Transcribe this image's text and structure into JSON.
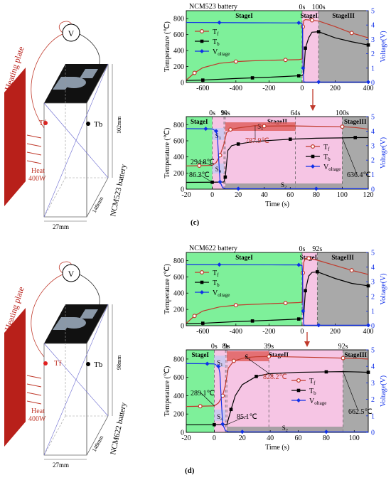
{
  "colors": {
    "green": "#7ef09a",
    "pink": "#f6c5e4",
    "gray": "#a9a9a9",
    "red": "#c0392b",
    "black": "#000000",
    "blue": "#1030e8",
    "plate": "#b8201a"
  },
  "labels": {
    "panel_c": "(c)",
    "panel_d": "(d)",
    "volt_symbol": "V"
  },
  "diagrams": [
    {
      "plate_label": "Heating plate",
      "tf_label": "Tf",
      "tb_label": "Tb",
      "heat_label": "Heat",
      "power_label": "400W",
      "height_label": "102mm",
      "depth_label": "148mm",
      "width_label": "27mm",
      "battery_label": "NCM523 battery"
    },
    {
      "plate_label": "Heating plate",
      "tf_label": "Tf",
      "tb_label": "Tb",
      "heat_label": "Heat",
      "power_label": "400W",
      "height_label": "98mm",
      "depth_label": "148mm",
      "width_label": "27mm",
      "battery_label": "NCM622 battery"
    }
  ],
  "chart_data": [
    {
      "id": "c-top",
      "type": "line",
      "title": "NCM523 battery",
      "xlabel": "",
      "ylabel": "Temperature (℃)",
      "y2label": "Voltage(V)",
      "xlim": [
        -700,
        400
      ],
      "ylim": [
        0,
        900
      ],
      "y2lim": [
        0,
        5
      ],
      "xticks": [
        -600,
        -400,
        -200,
        0,
        200,
        400
      ],
      "xticklabels": [
        "-600",
        "-400",
        "-200",
        "0",
        "200",
        "400"
      ],
      "yticks": [
        0,
        200,
        400,
        600,
        800
      ],
      "y2ticks": [
        0,
        1,
        2,
        3,
        4,
        5
      ],
      "regions": [
        {
          "label": "StageI",
          "x0": -700,
          "x1": 0,
          "color": "green"
        },
        {
          "label": "StageII",
          "x0": 0,
          "x1": 100,
          "color": "pink"
        },
        {
          "label": "StageIII",
          "x0": 100,
          "x1": 400,
          "color": "gray"
        }
      ],
      "marks": [
        {
          "label": "0s",
          "x": 0
        },
        {
          "label": "100s",
          "x": 100
        }
      ],
      "legend": "top-left",
      "series": [
        {
          "name": "Tf",
          "color": "red",
          "marker": "circle",
          "axis": "left",
          "x": [
            -700,
            -650,
            -600,
            -500,
            -400,
            -300,
            -200,
            -100,
            -20,
            0,
            5,
            10,
            20,
            60,
            100,
            200,
            300,
            400
          ],
          "y": [
            30,
            120,
            185,
            240,
            262,
            272,
            278,
            283,
            286,
            294,
            700,
            775,
            788,
            780,
            770,
            700,
            620,
            560
          ]
        },
        {
          "name": "Tb",
          "color": "black",
          "marker": "square",
          "axis": "left",
          "x": [
            -700,
            -600,
            -500,
            -400,
            -300,
            -200,
            -100,
            -20,
            0,
            10,
            20,
            40,
            60,
            100,
            200,
            300,
            400
          ],
          "y": [
            25,
            30,
            40,
            50,
            58,
            66,
            76,
            84,
            86,
            110,
            430,
            560,
            630,
            636,
            560,
            510,
            470
          ]
        },
        {
          "name": "Voltage",
          "color": "blue",
          "marker": "diamond",
          "axis": "right",
          "x": [
            -700,
            -500,
            -300,
            -100,
            -20,
            0,
            3,
            6,
            10,
            20,
            100,
            200,
            300,
            400
          ],
          "y": [
            4.18,
            4.17,
            4.16,
            4.15,
            4.15,
            4.1,
            3.5,
            1.0,
            0.05,
            0.03,
            0.03,
            0.03,
            0.03,
            0.03
          ]
        }
      ]
    },
    {
      "id": "c-bottom",
      "type": "line",
      "title": "",
      "xlabel": "Time (s)",
      "ylabel": "Temperature (℃)",
      "y2label": "Voltage(V)",
      "xlim": [
        -20,
        120
      ],
      "ylim": [
        0,
        900
      ],
      "y2lim": [
        0,
        5
      ],
      "xticks": [
        -20,
        0,
        20,
        40,
        60,
        80,
        100,
        120
      ],
      "xticklabels": [
        "-20",
        "0",
        "20",
        "40",
        "60",
        "80",
        "100",
        "120"
      ],
      "yticks": [
        0,
        200,
        400,
        600,
        800
      ],
      "y2ticks": [
        0,
        1,
        2,
        3,
        4,
        5
      ],
      "regions": [
        {
          "label": "StageI",
          "x0": -20,
          "x1": 0,
          "color": "green"
        },
        {
          "label": "StageII",
          "x0": 0,
          "x1": 100,
          "color": "pink"
        },
        {
          "label": "StageIII",
          "x0": 100,
          "x1": 120,
          "color": "gray"
        }
      ],
      "marks": [
        {
          "label": "0s",
          "x": 0
        },
        {
          "label": "9s",
          "x": 9
        },
        {
          "label": "10s",
          "x": 10
        },
        {
          "label": "64s",
          "x": 64
        },
        {
          "label": "100s",
          "x": 100
        }
      ],
      "subranges": [
        {
          "label": "S1",
          "x0": 0,
          "x1": 9,
          "row": "top-narrow"
        },
        {
          "label": "S1",
          "x0": 10,
          "x1": 64,
          "row": "top"
        },
        {
          "label": "S4",
          "x0": 0,
          "x1": 9,
          "row": "mid"
        },
        {
          "label": "S2",
          "x0": 10,
          "x1": 100,
          "row": "bottom"
        }
      ],
      "annotations": [
        {
          "text": "294.8℃",
          "x": 0,
          "y": 294.8
        },
        {
          "text": "86.2℃",
          "x": 0,
          "y": 86.2
        },
        {
          "text": "787.9℃",
          "x": 33,
          "y": 787.9
        },
        {
          "text": "636.4℃",
          "x": 100,
          "y": 636.4
        }
      ],
      "legend": "center-right",
      "series": [
        {
          "name": "Tf",
          "color": "red",
          "marker": "circle",
          "axis": "left",
          "x": [
            -20,
            -10,
            0,
            3,
            6,
            9,
            11,
            14,
            20,
            33,
            40,
            60,
            80,
            100,
            110,
            120
          ],
          "y": [
            288,
            291,
            294.8,
            330,
            420,
            560,
            700,
            740,
            760,
            787.9,
            782,
            785,
            780,
            775,
            765,
            745
          ]
        },
        {
          "name": "Tb",
          "color": "black",
          "marker": "square",
          "axis": "left",
          "x": [
            -20,
            0,
            8,
            9,
            10,
            12,
            15,
            20,
            30,
            40,
            60,
            80,
            100,
            110,
            120
          ],
          "y": [
            84,
            86.2,
            88,
            90,
            150,
            480,
            540,
            560,
            585,
            600,
            620,
            632,
            636.4,
            640,
            640
          ]
        },
        {
          "name": "Voltage",
          "color": "blue",
          "marker": "diamond",
          "axis": "right",
          "x": [
            -20,
            -5,
            0,
            1,
            3,
            4,
            5,
            6,
            8,
            10,
            20,
            40,
            60,
            80,
            100,
            120
          ],
          "y": [
            4.17,
            4.16,
            4.15,
            4.1,
            4.0,
            3.6,
            2.0,
            0.5,
            0.1,
            0.04,
            0.03,
            0.03,
            0.03,
            0.03,
            0.03,
            0.03
          ]
        }
      ]
    },
    {
      "id": "d-top",
      "type": "line",
      "title": "NCM622 battery",
      "xlabel": "",
      "ylabel": "Temperature (℃)",
      "y2label": "Voltage(V)",
      "xlim": [
        -700,
        400
      ],
      "ylim": [
        0,
        900
      ],
      "y2lim": [
        0,
        5
      ],
      "xticks": [
        -600,
        -400,
        -200,
        0,
        200,
        400
      ],
      "xticklabels": [
        "-600",
        "-400",
        "-200",
        "0",
        "200",
        "400"
      ],
      "yticks": [
        0,
        200,
        400,
        600,
        800
      ],
      "y2ticks": [
        0,
        1,
        2,
        3,
        4,
        5
      ],
      "regions": [
        {
          "label": "StageI",
          "x0": -700,
          "x1": 0,
          "color": "green"
        },
        {
          "label": "StageII",
          "x0": 0,
          "x1": 92,
          "color": "pink"
        },
        {
          "label": "StageIII",
          "x0": 92,
          "x1": 400,
          "color": "gray"
        }
      ],
      "marks": [
        {
          "label": "0s",
          "x": 0
        },
        {
          "label": "92s",
          "x": 92
        }
      ],
      "legend": "top-left",
      "series": [
        {
          "name": "Tf",
          "color": "red",
          "marker": "circle",
          "axis": "left",
          "x": [
            -700,
            -650,
            -600,
            -500,
            -400,
            -300,
            -200,
            -100,
            -20,
            0,
            5,
            10,
            20,
            40,
            92,
            200,
            300,
            400
          ],
          "y": [
            30,
            120,
            180,
            230,
            252,
            262,
            270,
            278,
            284,
            289,
            650,
            780,
            825,
            828,
            805,
            740,
            680,
            630
          ]
        },
        {
          "name": "Tb",
          "color": "black",
          "marker": "square",
          "axis": "left",
          "x": [
            -700,
            -600,
            -500,
            -400,
            -300,
            -200,
            -100,
            -20,
            0,
            9,
            20,
            40,
            60,
            92,
            200,
            300,
            400
          ],
          "y": [
            25,
            30,
            40,
            50,
            58,
            66,
            74,
            82,
            85,
            90,
            430,
            610,
            655,
            662,
            580,
            520,
            490
          ]
        },
        {
          "name": "Voltage",
          "color": "blue",
          "marker": "diamond",
          "axis": "right",
          "x": [
            -700,
            -500,
            -300,
            -100,
            -20,
            0,
            3,
            6,
            10,
            20,
            100,
            200,
            300,
            400
          ],
          "y": [
            4.18,
            4.17,
            4.16,
            4.15,
            4.15,
            4.1,
            3.5,
            1.0,
            0.05,
            0.03,
            0.03,
            0.03,
            0.03,
            0.03
          ]
        }
      ]
    },
    {
      "id": "d-bottom",
      "type": "line",
      "title": "",
      "xlabel": "Time (s)",
      "ylabel": "Temperature (℃)",
      "y2label": "Voltage(V)",
      "xlim": [
        -20,
        110
      ],
      "ylim": [
        0,
        900
      ],
      "y2lim": [
        0,
        5
      ],
      "xticks": [
        -20,
        0,
        20,
        40,
        60,
        80,
        100
      ],
      "xticklabels": [
        "-20",
        "0",
        "20",
        "40",
        "60",
        "80",
        "100"
      ],
      "yticks": [
        0,
        200,
        400,
        600,
        800
      ],
      "y2ticks": [
        0,
        1,
        2,
        3,
        4,
        5
      ],
      "regions": [
        {
          "label": "StageI",
          "x0": -20,
          "x1": 0,
          "color": "green"
        },
        {
          "label": "StageII",
          "x0": 0,
          "x1": 92,
          "color": "pink"
        },
        {
          "label": "StageIII",
          "x0": 92,
          "x1": 110,
          "color": "gray"
        }
      ],
      "marks": [
        {
          "label": "0s",
          "x": 0
        },
        {
          "label": "8s",
          "x": 8
        },
        {
          "label": "9s",
          "x": 9
        },
        {
          "label": "39s",
          "x": 39
        },
        {
          "label": "92s",
          "x": 92
        }
      ],
      "subranges": [
        {
          "label": "S1",
          "x0": 0,
          "x1": 8,
          "row": "top-narrow"
        },
        {
          "label": "S1",
          "x0": 9,
          "x1": 39,
          "row": "top"
        },
        {
          "label": "S4",
          "x0": 0,
          "x1": 8,
          "row": "mid"
        },
        {
          "label": "S2",
          "x0": 9,
          "x1": 92,
          "row": "bottom"
        }
      ],
      "annotations": [
        {
          "text": "289.1℃",
          "x": 0,
          "y": 289.1
        },
        {
          "text": "828.2℃",
          "x": 22,
          "y": 828.2
        },
        {
          "text": "85.1℃",
          "x": 9,
          "y": 85.1
        },
        {
          "text": "662.5℃",
          "x": 92,
          "y": 662.5
        }
      ],
      "legend": "center-right",
      "series": [
        {
          "name": "Tf",
          "color": "red",
          "marker": "circle",
          "axis": "left",
          "x": [
            -20,
            -10,
            0,
            3,
            6,
            8,
            10,
            14,
            22,
            30,
            39,
            60,
            80,
            92,
            100,
            110
          ],
          "y": [
            282,
            285,
            289.1,
            320,
            400,
            520,
            700,
            780,
            815,
            825,
            828.2,
            822,
            815,
            810,
            808,
            800
          ]
        },
        {
          "name": "Tb",
          "color": "black",
          "marker": "square",
          "axis": "left",
          "x": [
            -20,
            0,
            8,
            9,
            12,
            15,
            20,
            30,
            39,
            60,
            80,
            92,
            100,
            110
          ],
          "y": [
            82,
            84,
            85,
            85.1,
            250,
            400,
            520,
            610,
            640,
            655,
            660,
            662.5,
            660,
            655
          ]
        },
        {
          "name": "Voltage",
          "color": "blue",
          "marker": "diamond",
          "axis": "right",
          "x": [
            -20,
            -5,
            0,
            1,
            3,
            4,
            5,
            6,
            8,
            10,
            20,
            40,
            60,
            80,
            100,
            110
          ],
          "y": [
            4.17,
            4.16,
            4.15,
            4.1,
            4.0,
            3.6,
            2.0,
            0.5,
            0.1,
            0.04,
            0.03,
            0.03,
            0.03,
            0.03,
            0.03,
            0.03
          ]
        }
      ]
    }
  ]
}
